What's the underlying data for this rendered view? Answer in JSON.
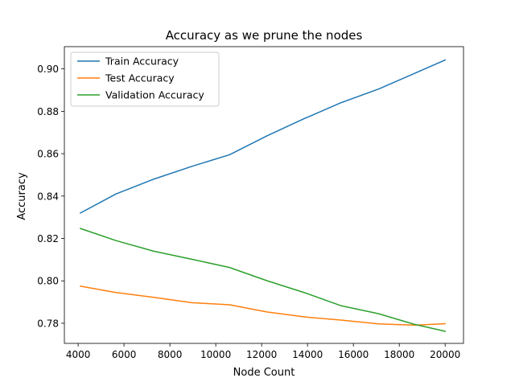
{
  "chart_data": {
    "type": "line",
    "title": "Accuracy as we prune the nodes",
    "xlabel": "Node Count",
    "ylabel": "Accuracy",
    "xlim": [
      3400,
      20800
    ],
    "ylim": [
      0.7705,
      0.9105
    ],
    "xticks": [
      4000,
      6000,
      8000,
      10000,
      12000,
      14000,
      16000,
      18000,
      20000
    ],
    "xtick_labels": [
      "4000",
      "6000",
      "8000",
      "10000",
      "12000",
      "14000",
      "16000",
      "18000",
      "20000"
    ],
    "yticks": [
      0.78,
      0.8,
      0.82,
      0.84,
      0.86,
      0.88,
      0.9
    ],
    "ytick_labels": [
      "0.78",
      "0.80",
      "0.82",
      "0.84",
      "0.86",
      "0.88",
      "0.90"
    ],
    "grid": false,
    "legend_position": "top-left",
    "x": [
      4100,
      5650,
      7300,
      8950,
      10600,
      12250,
      13850,
      15450,
      17100,
      18650,
      20000
    ],
    "series": [
      {
        "name": "Train Accuracy",
        "color": "#1f77b4",
        "values": [
          0.832,
          0.841,
          0.848,
          0.854,
          0.8595,
          0.8685,
          0.8765,
          0.884,
          0.8905,
          0.8978,
          0.9042
        ]
      },
      {
        "name": "Test Accuracy",
        "color": "#ff7f0e",
        "values": [
          0.7975,
          0.7945,
          0.7922,
          0.7897,
          0.7887,
          0.7853,
          0.783,
          0.7815,
          0.7797,
          0.7791,
          0.7798
        ]
      },
      {
        "name": "Validation Accuracy",
        "color": "#2ca02c",
        "values": [
          0.8247,
          0.819,
          0.814,
          0.8102,
          0.8063,
          0.8,
          0.7945,
          0.7883,
          0.7845,
          0.7795,
          0.7762
        ]
      }
    ]
  }
}
